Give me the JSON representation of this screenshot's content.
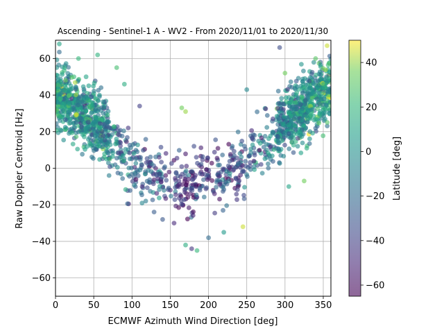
{
  "chart_data": {
    "type": "scatter",
    "title": "Ascending - Sentinel-1 A - WV2 - From 2020/11/01 to 2020/11/30",
    "xlabel": "ECMWF Azimuth Wind Direction [deg]",
    "ylabel": "Raw Doppler Centroid [Hz]",
    "xlim": [
      0,
      360
    ],
    "ylim": [
      -70,
      70
    ],
    "xticks": [
      0,
      50,
      100,
      150,
      200,
      250,
      300,
      350
    ],
    "yticks": [
      -60,
      -40,
      -20,
      0,
      20,
      40,
      60
    ],
    "grid": true,
    "colorbar": {
      "label": "Latitude [deg]",
      "range": [
        -65,
        50
      ],
      "ticks": [
        -60,
        -40,
        -20,
        0,
        20,
        40
      ],
      "colormap": "viridis"
    },
    "point_alpha": 0.6,
    "trend_points": [
      {
        "x": 0,
        "y": 38,
        "latitude": 5
      },
      {
        "x": 25,
        "y": 34,
        "latitude": 0
      },
      {
        "x": 50,
        "y": 26,
        "latitude": -5
      },
      {
        "x": 75,
        "y": 12,
        "latitude": -15
      },
      {
        "x": 100,
        "y": 0,
        "latitude": -25
      },
      {
        "x": 125,
        "y": -4,
        "latitude": -30
      },
      {
        "x": 150,
        "y": -6,
        "latitude": -40
      },
      {
        "x": 175,
        "y": -8,
        "latitude": -45
      },
      {
        "x": 200,
        "y": -7,
        "latitude": -45
      },
      {
        "x": 225,
        "y": -3,
        "latitude": -40
      },
      {
        "x": 250,
        "y": 5,
        "latitude": -30
      },
      {
        "x": 275,
        "y": 15,
        "latitude": -20
      },
      {
        "x": 300,
        "y": 24,
        "latitude": -10
      },
      {
        "x": 325,
        "y": 34,
        "latitude": 0
      },
      {
        "x": 350,
        "y": 40,
        "latitude": 10
      },
      {
        "x": 360,
        "y": 42,
        "latitude": 10
      }
    ],
    "sample_points": [
      {
        "x": 5,
        "y": 68,
        "latitude": 10
      },
      {
        "x": 12,
        "y": 55,
        "latitude": 15
      },
      {
        "x": 20,
        "y": 45,
        "latitude": 5
      },
      {
        "x": 30,
        "y": 60,
        "latitude": 20
      },
      {
        "x": 40,
        "y": 50,
        "latitude": 10
      },
      {
        "x": 55,
        "y": 62,
        "latitude": 18
      },
      {
        "x": 80,
        "y": 55,
        "latitude": 25
      },
      {
        "x": 90,
        "y": 46,
        "latitude": 15
      },
      {
        "x": 170,
        "y": 31,
        "latitude": 40
      },
      {
        "x": 165,
        "y": 33,
        "latitude": 35
      },
      {
        "x": 293,
        "y": 66,
        "latitude": -35
      },
      {
        "x": 355,
        "y": 67,
        "latitude": 45
      },
      {
        "x": 340,
        "y": 60,
        "latitude": 30
      },
      {
        "x": 300,
        "y": 52,
        "latitude": 35
      },
      {
        "x": 250,
        "y": 43,
        "latitude": -5
      },
      {
        "x": 185,
        "y": -45,
        "latitude": 20
      },
      {
        "x": 178,
        "y": -44,
        "latitude": -45
      },
      {
        "x": 170,
        "y": -42,
        "latitude": 15
      },
      {
        "x": 200,
        "y": -38,
        "latitude": -20
      },
      {
        "x": 220,
        "y": -35,
        "latitude": 5
      },
      {
        "x": 245,
        "y": -32,
        "latitude": 45
      },
      {
        "x": 155,
        "y": -30,
        "latitude": -50
      },
      {
        "x": 140,
        "y": -28,
        "latitude": -30
      },
      {
        "x": 325,
        "y": -7,
        "latitude": 35
      },
      {
        "x": 305,
        "y": -10,
        "latitude": 10
      },
      {
        "x": 110,
        "y": 34,
        "latitude": -40
      },
      {
        "x": 95,
        "y": 22,
        "latitude": -45
      },
      {
        "x": 70,
        "y": -4,
        "latitude": -10
      }
    ]
  }
}
